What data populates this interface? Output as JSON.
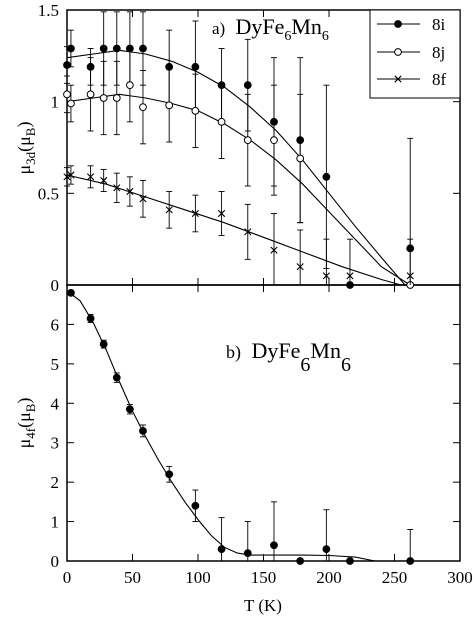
{
  "chart_data": [
    {
      "type": "scatter",
      "title": "a)",
      "compound": {
        "base": "DyFe",
        "sub1": "6",
        "mid": "Mn",
        "sub2": "6"
      },
      "ylabel": {
        "main": "μ",
        "sub": "3d",
        "unit_open": "(μ",
        "unit_sub": "B",
        "unit_close": ")"
      },
      "ylim": [
        0,
        1.5
      ],
      "xlim": [
        0,
        300
      ],
      "yticks": [
        "0",
        "0.5",
        "1",
        "1.5"
      ],
      "legend_position": "top-right",
      "series": [
        {
          "name": "8i",
          "marker": "filled-circle",
          "points": [
            {
              "x": 0,
              "y": 1.2,
              "err": 0.1
            },
            {
              "x": 3,
              "y": 1.29,
              "err": 0.1
            },
            {
              "x": 18,
              "y": 1.19,
              "err": 0.1
            },
            {
              "x": 28,
              "y": 1.29,
              "err": 0.2
            },
            {
              "x": 38,
              "y": 1.29,
              "err": 0.2
            },
            {
              "x": 48,
              "y": 1.29,
              "err": 0.2
            },
            {
              "x": 58,
              "y": 1.29,
              "err": 0.2
            },
            {
              "x": 78,
              "y": 1.19,
              "err": 0.2
            },
            {
              "x": 98,
              "y": 1.19,
              "err": 0.25
            },
            {
              "x": 118,
              "y": 1.09,
              "err": 0.2
            },
            {
              "x": 138,
              "y": 1.09,
              "err": 0.25
            },
            {
              "x": 158,
              "y": 0.89,
              "err": 0.35
            },
            {
              "x": 178,
              "y": 0.79,
              "err": 0.45
            },
            {
              "x": 198,
              "y": 0.59,
              "err": 0.5
            },
            {
              "x": 216,
              "y": 0.0,
              "err": 0.0
            },
            {
              "x": 262,
              "y": 0.2,
              "err": 0.6
            }
          ],
          "fit": [
            [
              0,
              1.24
            ],
            [
              20,
              1.26
            ],
            [
              40,
              1.28
            ],
            [
              60,
              1.26
            ],
            [
              80,
              1.22
            ],
            [
              100,
              1.16
            ],
            [
              120,
              1.08
            ],
            [
              140,
              0.97
            ],
            [
              160,
              0.84
            ],
            [
              180,
              0.68
            ],
            [
              200,
              0.5
            ],
            [
              220,
              0.32
            ],
            [
              240,
              0.15
            ],
            [
              258,
              0.0
            ]
          ]
        },
        {
          "name": "8j",
          "marker": "open-circle",
          "points": [
            {
              "x": 0,
              "y": 1.04,
              "err": 0.1
            },
            {
              "x": 3,
              "y": 0.99,
              "err": 0.1
            },
            {
              "x": 18,
              "y": 1.04,
              "err": 0.2
            },
            {
              "x": 28,
              "y": 1.02,
              "err": 0.2
            },
            {
              "x": 38,
              "y": 1.02,
              "err": 0.2
            },
            {
              "x": 48,
              "y": 1.09,
              "err": 0.2
            },
            {
              "x": 58,
              "y": 0.97,
              "err": 0.2
            },
            {
              "x": 78,
              "y": 0.98,
              "err": 0.2
            },
            {
              "x": 98,
              "y": 0.95,
              "err": 0.2
            },
            {
              "x": 118,
              "y": 0.89,
              "err": 0.2
            },
            {
              "x": 138,
              "y": 0.79,
              "err": 0.25
            },
            {
              "x": 158,
              "y": 0.79,
              "err": 0.3
            },
            {
              "x": 178,
              "y": 0.69,
              "err": 0.35
            },
            {
              "x": 262,
              "y": 0.0,
              "err": 0.0
            }
          ],
          "fit": [
            [
              0,
              1.0
            ],
            [
              20,
              1.02
            ],
            [
              40,
              1.04
            ],
            [
              60,
              1.02
            ],
            [
              80,
              0.99
            ],
            [
              100,
              0.95
            ],
            [
              120,
              0.88
            ],
            [
              140,
              0.79
            ],
            [
              160,
              0.68
            ],
            [
              180,
              0.55
            ],
            [
              200,
              0.4
            ],
            [
              220,
              0.25
            ],
            [
              240,
              0.1
            ],
            [
              262,
              0.0
            ]
          ]
        },
        {
          "name": "8f",
          "marker": "cross",
          "points": [
            {
              "x": 0,
              "y": 0.59,
              "err": 0.05
            },
            {
              "x": 3,
              "y": 0.6,
              "err": 0.05
            },
            {
              "x": 18,
              "y": 0.59,
              "err": 0.06
            },
            {
              "x": 28,
              "y": 0.57,
              "err": 0.06
            },
            {
              "x": 38,
              "y": 0.53,
              "err": 0.08
            },
            {
              "x": 48,
              "y": 0.51,
              "err": 0.08
            },
            {
              "x": 58,
              "y": 0.47,
              "err": 0.1
            },
            {
              "x": 78,
              "y": 0.41,
              "err": 0.1
            },
            {
              "x": 98,
              "y": 0.39,
              "err": 0.1
            },
            {
              "x": 118,
              "y": 0.39,
              "err": 0.12
            },
            {
              "x": 138,
              "y": 0.29,
              "err": 0.15
            },
            {
              "x": 158,
              "y": 0.19,
              "err": 0.2
            },
            {
              "x": 178,
              "y": 0.1,
              "err": 0.2
            },
            {
              "x": 198,
              "y": 0.05,
              "err": 0.2
            },
            {
              "x": 216,
              "y": 0.05,
              "err": 0.2
            },
            {
              "x": 262,
              "y": 0.05,
              "err": 0.2
            }
          ],
          "fit": [
            [
              0,
              0.6
            ],
            [
              30,
              0.55
            ],
            [
              60,
              0.48
            ],
            [
              90,
              0.41
            ],
            [
              120,
              0.34
            ],
            [
              150,
              0.26
            ],
            [
              180,
              0.18
            ],
            [
              210,
              0.1
            ],
            [
              240,
              0.03
            ],
            [
              255,
              0.0
            ]
          ]
        }
      ]
    },
    {
      "type": "scatter",
      "title": "b)",
      "compound": {
        "base": "DyFe",
        "sub1": "6",
        "mid": "Mn",
        "sub2": "6"
      },
      "ylabel": {
        "main": "μ",
        "sub": "4f",
        "unit_open": "(μ",
        "unit_sub": "B",
        "unit_close": ")"
      },
      "xlabel": "T (K)",
      "xlim": [
        0,
        300
      ],
      "ylim": [
        0,
        7
      ],
      "xticks": [
        "0",
        "50",
        "100",
        "150",
        "200",
        "250",
        "300"
      ],
      "yticks": [
        "0",
        "1",
        "2",
        "3",
        "4",
        "5",
        "6"
      ],
      "series": [
        {
          "name": "",
          "marker": "filled-circle",
          "points": [
            {
              "x": 3,
              "y": 6.8,
              "err": 0.05
            },
            {
              "x": 18,
              "y": 6.15,
              "err": 0.1
            },
            {
              "x": 28,
              "y": 5.5,
              "err": 0.1
            },
            {
              "x": 38,
              "y": 4.65,
              "err": 0.12
            },
            {
              "x": 48,
              "y": 3.85,
              "err": 0.12
            },
            {
              "x": 58,
              "y": 3.3,
              "err": 0.15
            },
            {
              "x": 78,
              "y": 2.2,
              "err": 0.2
            },
            {
              "x": 98,
              "y": 1.4,
              "err": 0.4
            },
            {
              "x": 118,
              "y": 0.3,
              "err": 0.8
            },
            {
              "x": 138,
              "y": 0.2,
              "err": 0.8
            },
            {
              "x": 158,
              "y": 0.4,
              "err": 1.1
            },
            {
              "x": 178,
              "y": 0.0,
              "err": 0.0
            },
            {
              "x": 198,
              "y": 0.3,
              "err": 1.0
            },
            {
              "x": 216,
              "y": 0.0,
              "err": 0.0
            },
            {
              "x": 262,
              "y": 0.0,
              "err": 0.8
            }
          ],
          "fit": [
            [
              0,
              6.85
            ],
            [
              10,
              6.6
            ],
            [
              20,
              6.05
            ],
            [
              30,
              5.35
            ],
            [
              40,
              4.55
            ],
            [
              50,
              3.8
            ],
            [
              60,
              3.15
            ],
            [
              70,
              2.55
            ],
            [
              80,
              2.0
            ],
            [
              90,
              1.5
            ],
            [
              100,
              1.05
            ],
            [
              110,
              0.65
            ],
            [
              120,
              0.35
            ],
            [
              130,
              0.2
            ],
            [
              140,
              0.15
            ],
            [
              160,
              0.15
            ],
            [
              180,
              0.15
            ],
            [
              200,
              0.14
            ],
            [
              220,
              0.1
            ],
            [
              235,
              0.0
            ],
            [
              262,
              0.0
            ]
          ]
        }
      ]
    }
  ]
}
